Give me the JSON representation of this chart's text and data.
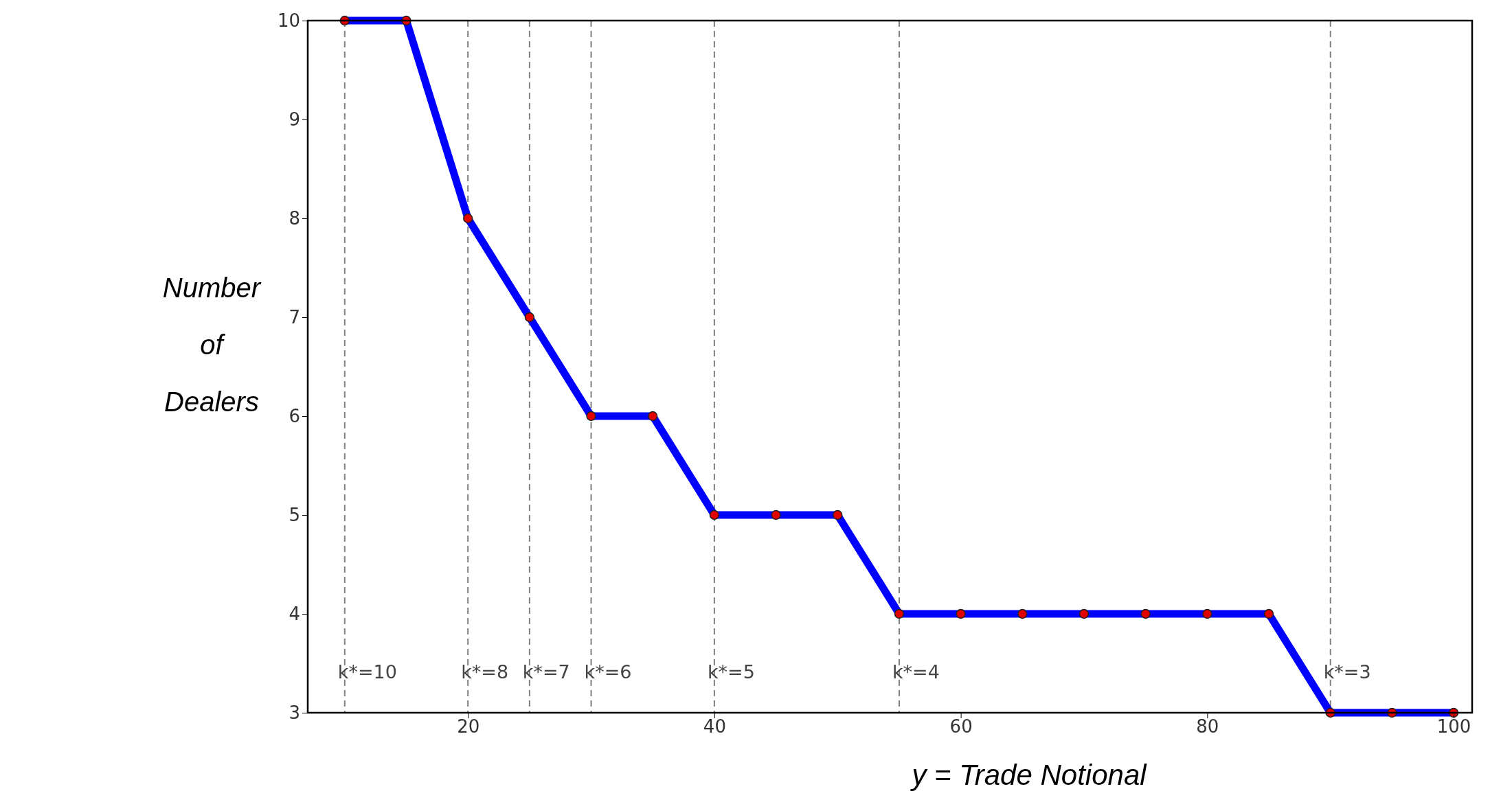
{
  "chart_data": {
    "type": "line",
    "xlabel": "y = Trade Notional",
    "ylabel": "Number of Dealers",
    "x": [
      10,
      15,
      20,
      25,
      30,
      35,
      40,
      45,
      50,
      55,
      60,
      65,
      70,
      75,
      80,
      85,
      90,
      95,
      100
    ],
    "series": [
      {
        "color": "#0000ff",
        "values": [
          10,
          10,
          8,
          7,
          6,
          6,
          5,
          5,
          5,
          4,
          4,
          4,
          4,
          4,
          4,
          4,
          3,
          3,
          3
        ]
      }
    ],
    "xlim": [
      7,
      101.5
    ],
    "xticks": [
      20,
      40,
      60,
      80,
      100
    ],
    "ylim": [
      3,
      10
    ],
    "yticks": [
      3,
      4,
      5,
      6,
      7,
      8,
      9,
      10
    ],
    "marker": "circle",
    "line_style": "solid",
    "grid": false,
    "annotations": [
      {
        "text": "k*=10",
        "x": 10,
        "y": 3.35
      },
      {
        "text": "k*=8",
        "x": 20,
        "y": 3.35
      },
      {
        "text": "k*=7",
        "x": 25,
        "y": 3.35
      },
      {
        "text": "k*=6",
        "x": 30,
        "y": 3.35
      },
      {
        "text": "k*=5",
        "x": 40,
        "y": 3.35
      },
      {
        "text": "k*=4",
        "x": 55,
        "y": 3.35
      },
      {
        "text": "k*=3",
        "x": 90,
        "y": 3.35
      }
    ],
    "ref_lines": [
      {
        "axis": "x",
        "value": 10,
        "color": "#808080",
        "line_style": "dashed"
      },
      {
        "axis": "x",
        "value": 20,
        "color": "#808080",
        "line_style": "dashed"
      },
      {
        "axis": "x",
        "value": 25,
        "color": "#808080",
        "line_style": "dashed"
      },
      {
        "axis": "x",
        "value": 30,
        "color": "#808080",
        "line_style": "dashed"
      },
      {
        "axis": "x",
        "value": 40,
        "color": "#808080",
        "line_style": "dashed"
      },
      {
        "axis": "x",
        "value": 55,
        "color": "#808080",
        "line_style": "dashed"
      },
      {
        "axis": "x",
        "value": 90,
        "color": "#808080",
        "line_style": "dashed"
      }
    ]
  }
}
